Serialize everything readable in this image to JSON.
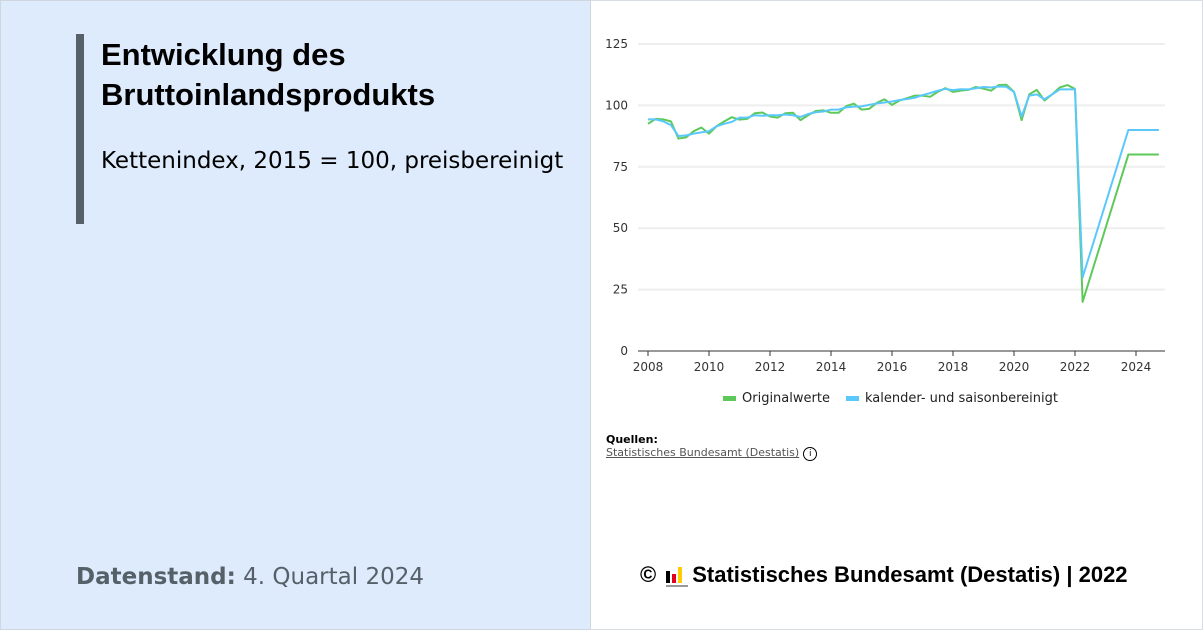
{
  "left": {
    "title": "Entwicklung des Bruttoinlandsprodukts",
    "subtitle": "Kettenindex, 2015 = 100, preisbereinigt",
    "datenstand_label": "Datenstand:",
    "datenstand_value": "4. Quartal 2024"
  },
  "sources": {
    "label": "Quellen:",
    "link": "Statistisches Bundesamt (Destatis)",
    "info_icon": "i"
  },
  "footer": {
    "copyright": "©",
    "text": "Statistisches Bundesamt (Destatis) | 2022"
  },
  "colors": {
    "original": "#5ec95a",
    "adjusted": "#5bc8fb",
    "accent": "#566068"
  },
  "chart_data": {
    "type": "line",
    "xlabel": "",
    "ylabel": "",
    "ylim": [
      0,
      125
    ],
    "xlim": [
      2008,
      2024.85
    ],
    "yticks": [
      "0",
      "25",
      "50",
      "75",
      "100",
      "125"
    ],
    "xticks": [
      "2008",
      "2010",
      "2012",
      "2014",
      "2016",
      "2018",
      "2020",
      "2022",
      "2024"
    ],
    "grid": true,
    "legend": "bottom",
    "series": [
      {
        "name": "Originalwerte",
        "points": [
          [
            "2008-Q1",
            92.5
          ],
          [
            "2008-Q2",
            94.5
          ],
          [
            "2008-Q3",
            94.3
          ],
          [
            "2008-Q4",
            93.5
          ],
          [
            "2009-Q1",
            86.5
          ],
          [
            "2009-Q2",
            87
          ],
          [
            "2009-Q3",
            89.5
          ],
          [
            "2009-Q4",
            91
          ],
          [
            "2010-Q1",
            88.5
          ],
          [
            "2010-Q2",
            91.5
          ],
          [
            "2010-Q3",
            93.5
          ],
          [
            "2010-Q4",
            95.2
          ],
          [
            "2011-Q1",
            94.2
          ],
          [
            "2011-Q2",
            94.5
          ],
          [
            "2011-Q3",
            96.8
          ],
          [
            "2011-Q4",
            97.1
          ],
          [
            "2012-Q1",
            95.5
          ],
          [
            "2012-Q2",
            95
          ],
          [
            "2012-Q3",
            96.8
          ],
          [
            "2012-Q4",
            97
          ],
          [
            "2013-Q1",
            94
          ],
          [
            "2013-Q2",
            96
          ],
          [
            "2013-Q3",
            97.7
          ],
          [
            "2013-Q4",
            98
          ],
          [
            "2014-Q1",
            97
          ],
          [
            "2014-Q2",
            97
          ],
          [
            "2014-Q3",
            99.7
          ],
          [
            "2014-Q4",
            100.7
          ],
          [
            "2015-Q1",
            98.3
          ],
          [
            "2015-Q2",
            98.6
          ],
          [
            "2015-Q3",
            101
          ],
          [
            "2015-Q4",
            102.5
          ],
          [
            "2016-Q1",
            100.2
          ],
          [
            "2016-Q2",
            102
          ],
          [
            "2016-Q3",
            103
          ],
          [
            "2016-Q4",
            104
          ],
          [
            "2017-Q1",
            104
          ],
          [
            "2017-Q2",
            103.5
          ],
          [
            "2017-Q3",
            105.5
          ],
          [
            "2017-Q4",
            107
          ],
          [
            "2018-Q1",
            105.5
          ],
          [
            "2018-Q2",
            106
          ],
          [
            "2018-Q3",
            106.3
          ],
          [
            "2018-Q4",
            107.5
          ],
          [
            "2019-Q1",
            106.8
          ],
          [
            "2019-Q2",
            106
          ],
          [
            "2019-Q3",
            108.3
          ],
          [
            "2019-Q4",
            108.4
          ],
          [
            "2020-Q1",
            105.5
          ],
          [
            "2020-Q2",
            94
          ],
          [
            "2020-Q3",
            104.5
          ],
          [
            "2020-Q4",
            106.3
          ],
          [
            "2021-Q1",
            102
          ],
          [
            "2021-Q2",
            104.5
          ],
          [
            "2021-Q3",
            107.3
          ],
          [
            "2021-Q4",
            108.3
          ],
          [
            "2022-Q1",
            106.7
          ],
          [
            "2022-Q2",
            20
          ],
          [
            "2023-Q4",
            80
          ],
          [
            "2024-Q1",
            80
          ],
          [
            "2024-Q2",
            80
          ],
          [
            "2024-Q3",
            80
          ],
          [
            "2024-Q4",
            80
          ]
        ]
      },
      {
        "name": "kalender- und saisonbereinigt",
        "points": [
          [
            "2008-Q1",
            94.3
          ],
          [
            "2008-Q2",
            94.3
          ],
          [
            "2008-Q3",
            93.5
          ],
          [
            "2008-Q4",
            92
          ],
          [
            "2009-Q1",
            87.5
          ],
          [
            "2009-Q2",
            87.8
          ],
          [
            "2009-Q3",
            88.5
          ],
          [
            "2009-Q4",
            89
          ],
          [
            "2010-Q1",
            89.5
          ],
          [
            "2010-Q2",
            91.5
          ],
          [
            "2010-Q3",
            92.5
          ],
          [
            "2010-Q4",
            93.3
          ],
          [
            "2011-Q1",
            95
          ],
          [
            "2011-Q2",
            95
          ],
          [
            "2011-Q3",
            96
          ],
          [
            "2011-Q4",
            95.8
          ],
          [
            "2012-Q1",
            96
          ],
          [
            "2012-Q2",
            96
          ],
          [
            "2012-Q3",
            96.3
          ],
          [
            "2012-Q4",
            96
          ],
          [
            "2013-Q1",
            95.3
          ],
          [
            "2013-Q2",
            96.5
          ],
          [
            "2013-Q3",
            97.2
          ],
          [
            "2013-Q4",
            97.5
          ],
          [
            "2014-Q1",
            98.3
          ],
          [
            "2014-Q2",
            98.3
          ],
          [
            "2014-Q3",
            99.2
          ],
          [
            "2014-Q4",
            99.5
          ],
          [
            "2015-Q1",
            99.6
          ],
          [
            "2015-Q2",
            100.2
          ],
          [
            "2015-Q3",
            100.8
          ],
          [
            "2015-Q4",
            101.2
          ],
          [
            "2016-Q1",
            101.6
          ],
          [
            "2016-Q2",
            102.2
          ],
          [
            "2016-Q3",
            102.6
          ],
          [
            "2016-Q4",
            103.1
          ],
          [
            "2017-Q1",
            104.2
          ],
          [
            "2017-Q2",
            105
          ],
          [
            "2017-Q3",
            106
          ],
          [
            "2017-Q4",
            106.7
          ],
          [
            "2018-Q1",
            106.2
          ],
          [
            "2018-Q2",
            106.6
          ],
          [
            "2018-Q3",
            106.5
          ],
          [
            "2018-Q4",
            107
          ],
          [
            "2019-Q1",
            107.5
          ],
          [
            "2019-Q2",
            107.3
          ],
          [
            "2019-Q3",
            107.7
          ],
          [
            "2019-Q4",
            107.6
          ],
          [
            "2020-Q1",
            105.5
          ],
          [
            "2020-Q2",
            95.5
          ],
          [
            "2020-Q3",
            104
          ],
          [
            "2020-Q4",
            104.5
          ],
          [
            "2021-Q1",
            102.5
          ],
          [
            "2021-Q2",
            104.5
          ],
          [
            "2021-Q3",
            106.5
          ],
          [
            "2021-Q4",
            106.5
          ],
          [
            "2022-Q1",
            106.5
          ],
          [
            "2022-Q2",
            30
          ],
          [
            "2023-Q4",
            90
          ],
          [
            "2024-Q1",
            90
          ],
          [
            "2024-Q2",
            90
          ],
          [
            "2024-Q3",
            90
          ],
          [
            "2024-Q4",
            90
          ]
        ]
      }
    ]
  }
}
